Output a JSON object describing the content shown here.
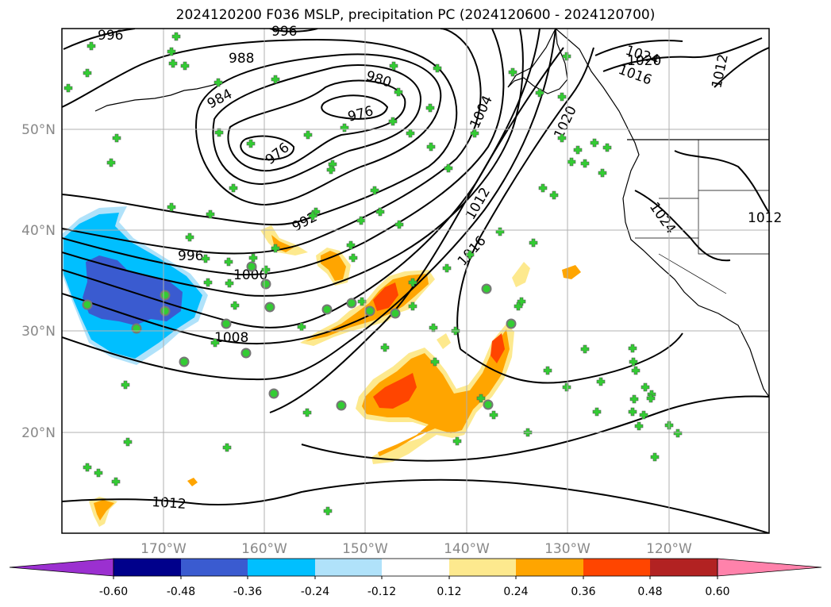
{
  "title": "2024120200 F036 MSLP, precipitation PC (2024120600 - 2024120700)",
  "latitude_labels": [
    "50°N",
    "40°N",
    "30°N",
    "20°N"
  ],
  "longitude_labels": [
    "170°W",
    "160°W",
    "150°W",
    "140°W",
    "130°W",
    "120°W"
  ],
  "isobar_labels": [
    "996",
    "996",
    "988",
    "984",
    "980",
    "976",
    "976",
    "1004",
    "992",
    "996",
    "1000",
    "1008",
    "1012",
    "1016",
    "1020",
    "1024",
    "1020",
    "1016",
    "1012",
    "1012",
    "1024",
    "1012"
  ],
  "colorbar": {
    "tick_labels": [
      "-0.60",
      "-0.48",
      "-0.36",
      "-0.24",
      "-0.12",
      "0.12",
      "0.24",
      "0.36",
      "0.48",
      "0.60"
    ],
    "colors": [
      "#9b30d0",
      "#00008b",
      "#3a5bd0",
      "#00bfff",
      "#b0e2fa",
      "#ffffff",
      "#fde98e",
      "#ffa500",
      "#ff4500",
      "#b22222",
      "#ff82ab"
    ]
  },
  "precip_colors": {
    "pos_low": "#fde98e",
    "pos_mid": "#ffa500",
    "pos_high": "#ff4500",
    "neg_low": "#b0e2fa",
    "neg_mid": "#00bfff",
    "neg_high": "#3a5bd0"
  },
  "station_marker_color": "#33cc33",
  "gridlines": true
}
